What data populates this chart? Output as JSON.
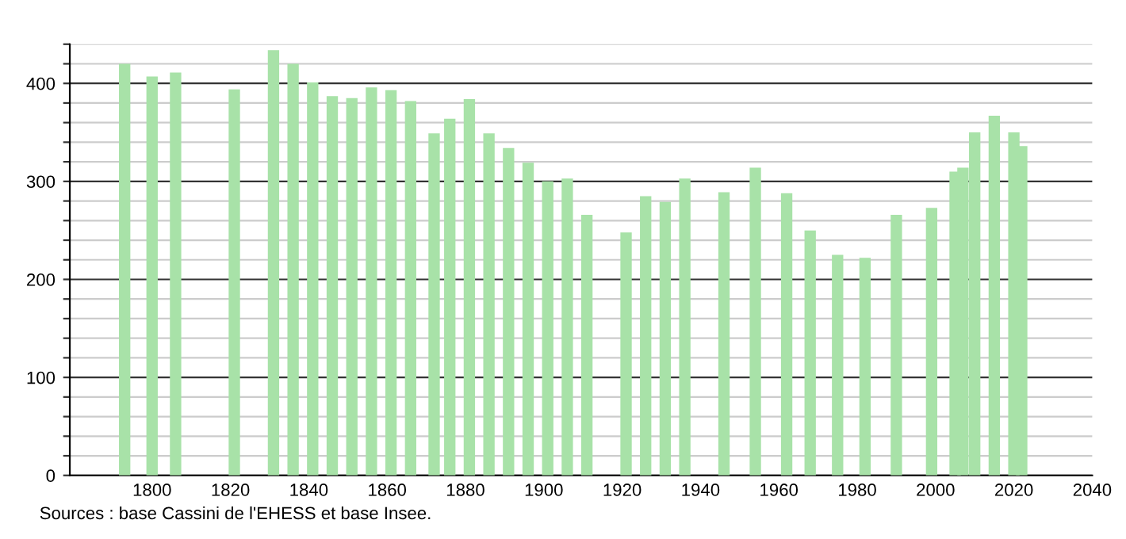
{
  "chart_data": {
    "type": "bar",
    "x": [
      1793,
      1800,
      1806,
      1821,
      1831,
      1836,
      1841,
      1846,
      1851,
      1856,
      1861,
      1866,
      1872,
      1876,
      1881,
      1886,
      1891,
      1896,
      1901,
      1906,
      1911,
      1921,
      1926,
      1931,
      1936,
      1946,
      1954,
      1962,
      1968,
      1975,
      1982,
      1990,
      1999,
      2005,
      2007,
      2010,
      2015,
      2020,
      2022
    ],
    "values": [
      420,
      407,
      411,
      394,
      434,
      420,
      401,
      387,
      385,
      396,
      393,
      382,
      349,
      364,
      384,
      349,
      334,
      319,
      300,
      303,
      266,
      248,
      285,
      279,
      303,
      289,
      314,
      288,
      250,
      225,
      222,
      266,
      273,
      310,
      314,
      350,
      367,
      350,
      336
    ],
    "color": "#a8e2a8",
    "xlim": [
      1779,
      2040
    ],
    "xticks": [
      1800,
      1820,
      1840,
      1860,
      1880,
      1900,
      1920,
      1940,
      1960,
      1980,
      2000,
      2020,
      2040
    ],
    "ylim": [
      0,
      440
    ],
    "yticks": [
      0,
      {
        "value": 20,
        "label": null
      },
      {
        "value": 40,
        "label": null
      },
      {
        "value": 60,
        "label": null
      },
      {
        "value": 80,
        "label": null
      },
      100,
      {
        "value": 120,
        "label": null
      },
      {
        "value": 140,
        "label": null
      },
      {
        "value": 160,
        "label": null
      },
      {
        "value": 180,
        "label": null
      },
      200,
      {
        "value": 220,
        "label": null
      },
      {
        "value": 240,
        "label": null
      },
      {
        "value": 260,
        "label": null
      },
      {
        "value": 280,
        "label": null
      },
      300,
      {
        "value": 320,
        "label": null
      },
      {
        "value": 340,
        "label": null
      },
      {
        "value": 360,
        "label": null
      },
      {
        "value": 380,
        "label": null
      },
      400,
      {
        "value": 420,
        "label": null
      },
      {
        "value": 440,
        "label": null
      }
    ],
    "grid": "y",
    "annotations": [
      "Sources : base Cassini de l'EHESS et base Insee."
    ]
  }
}
